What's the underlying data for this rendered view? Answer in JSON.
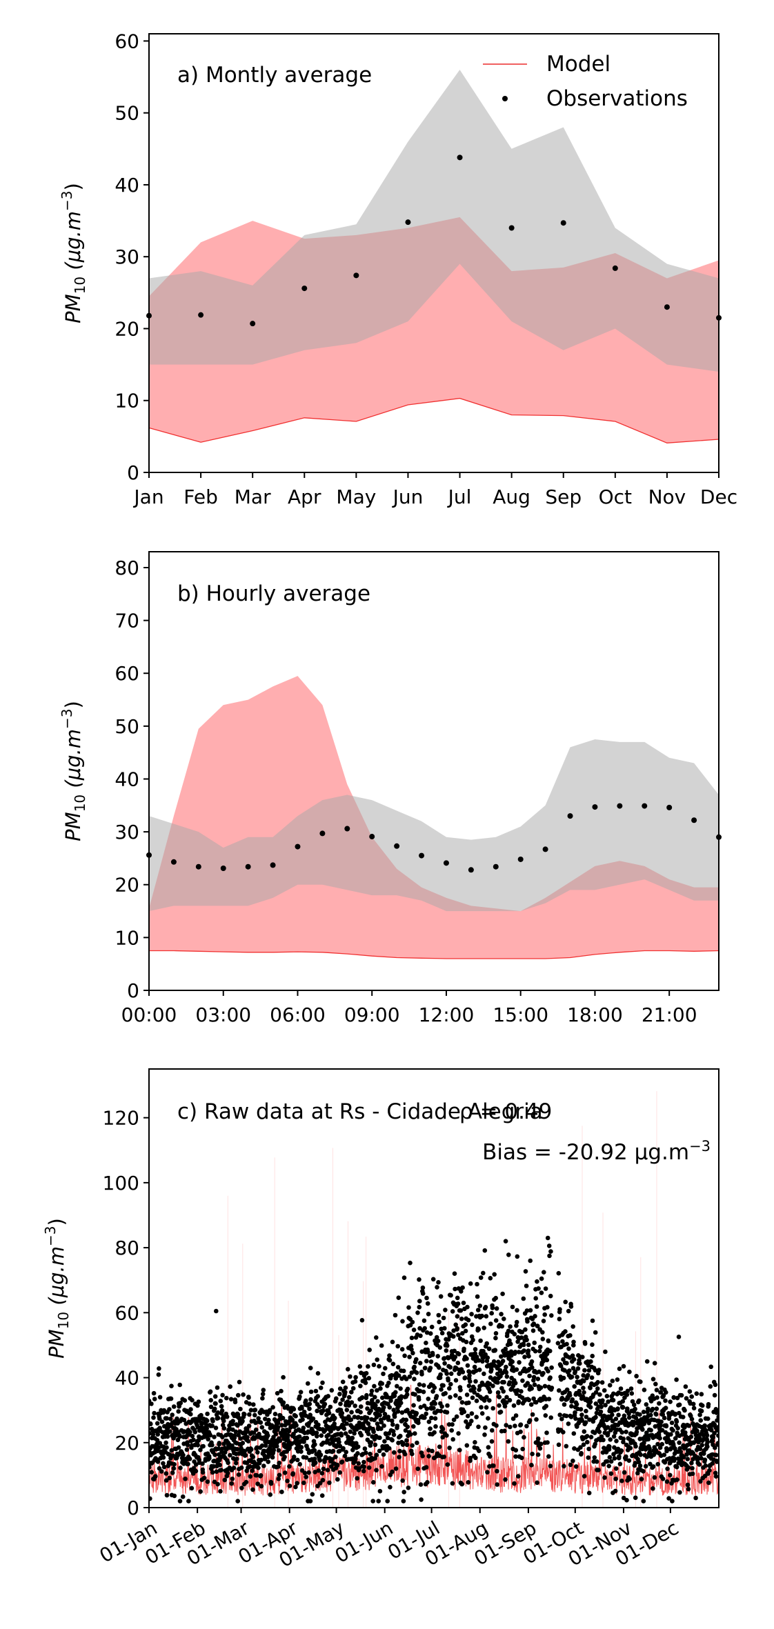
{
  "chart_data": [
    {
      "type": "line",
      "panel_label": "a) Montly average",
      "ylabel_main": "PM",
      "ylabel_sub": "10",
      "ylabel_unit": " (μg.m",
      "ylabel_sup": "−3",
      "ylabel_close": ")",
      "ylim": [
        0,
        61
      ],
      "yticks": [
        0,
        10,
        20,
        30,
        40,
        50,
        60
      ],
      "categories": [
        "Jan",
        "Feb",
        "Mar",
        "Apr",
        "May",
        "Jun",
        "Jul",
        "Aug",
        "Sep",
        "Oct",
        "Nov",
        "Dec"
      ],
      "legend": {
        "position": "top-right",
        "model": "Model",
        "observations": "Observations"
      },
      "model_band": {
        "lower": [
          6.2,
          4.2,
          5.8,
          7.6,
          7.1,
          9.4,
          10.3,
          8.0,
          7.9,
          7.1,
          4.1,
          4.6
        ],
        "upper": [
          24.5,
          32.0,
          35.0,
          32.5,
          33.0,
          34.0,
          35.5,
          28.0,
          28.5,
          30.5,
          27.0,
          29.5
        ]
      },
      "obs_band": {
        "lower": [
          15.0,
          15.0,
          15.0,
          17.0,
          18.0,
          21.0,
          29.0,
          21.0,
          17.0,
          20.0,
          15.0,
          14.0
        ],
        "upper": [
          27.0,
          28.0,
          26.0,
          33.0,
          34.5,
          46.0,
          56.0,
          45.0,
          48.0,
          34.0,
          29.0,
          27.0
        ]
      },
      "observations": [
        21.8,
        21.9,
        20.7,
        25.6,
        27.4,
        34.8,
        43.8,
        34.0,
        34.7,
        28.4,
        23.0,
        21.5
      ]
    },
    {
      "type": "line",
      "panel_label": "b) Hourly average",
      "ylabel_main": "PM",
      "ylabel_sub": "10",
      "ylabel_unit": " (μg.m",
      "ylabel_sup": "−3",
      "ylabel_close": ")",
      "ylim": [
        0,
        83
      ],
      "yticks": [
        0,
        10,
        20,
        30,
        40,
        50,
        60,
        70,
        80
      ],
      "x_hours": [
        0,
        1,
        2,
        3,
        4,
        5,
        6,
        7,
        8,
        9,
        10,
        11,
        12,
        13,
        14,
        15,
        16,
        17,
        18,
        19,
        20,
        21,
        22,
        23
      ],
      "xticks": [
        "00:00",
        "03:00",
        "06:00",
        "09:00",
        "12:00",
        "15:00",
        "18:00",
        "21:00"
      ],
      "xtick_hours": [
        0,
        3,
        6,
        9,
        12,
        15,
        18,
        21
      ],
      "model_band": {
        "lower": [
          7.5,
          7.5,
          7.4,
          7.3,
          7.2,
          7.2,
          7.3,
          7.2,
          6.9,
          6.5,
          6.2,
          6.1,
          6.0,
          6.0,
          6.0,
          6.0,
          6.0,
          6.2,
          6.8,
          7.2,
          7.5,
          7.5,
          7.4,
          7.5
        ],
        "upper": [
          15.5,
          33.0,
          49.5,
          54.0,
          55.0,
          57.5,
          59.5,
          54.0,
          39.0,
          29.0,
          23.0,
          19.5,
          17.5,
          16.0,
          15.5,
          15.0,
          17.5,
          20.5,
          23.5,
          24.5,
          23.5,
          21.0,
          19.5,
          19.5
        ]
      },
      "obs_band": {
        "lower": [
          15.0,
          16.0,
          16.0,
          16.0,
          16.0,
          17.5,
          20.0,
          20.0,
          19.0,
          18.0,
          18.0,
          17.0,
          15.0,
          15.0,
          15.0,
          15.0,
          16.5,
          19.0,
          19.0,
          20.0,
          21.0,
          19.0,
          17.0,
          17.0
        ],
        "upper": [
          33.0,
          31.5,
          30.0,
          27.0,
          29.0,
          29.0,
          33.0,
          36.0,
          37.0,
          36.0,
          34.0,
          32.0,
          29.0,
          28.5,
          29.0,
          31.0,
          35.0,
          46.0,
          47.5,
          47.0,
          47.0,
          44.0,
          43.0,
          37.0
        ]
      },
      "observations": [
        25.6,
        24.3,
        23.4,
        23.1,
        23.4,
        23.7,
        27.2,
        29.7,
        30.6,
        29.1,
        27.3,
        25.5,
        24.1,
        22.8,
        23.4,
        24.8,
        26.7,
        33.0,
        34.7,
        34.9,
        34.9,
        34.6,
        32.2,
        29.0
      ]
    },
    {
      "type": "scatter",
      "panel_label": "c) Raw data at Rs - Cidade Alegria",
      "rho_label": "ρ = 0.49",
      "bias_label": "Bias = -20.92 μg.m",
      "bias_sup": "−3",
      "ylabel_main": "PM",
      "ylabel_sub": "10",
      "ylabel_unit": " (μg.m",
      "ylabel_sup": "−3",
      "ylabel_close": ")",
      "ylim": [
        0,
        135
      ],
      "yticks": [
        0,
        20,
        40,
        60,
        80,
        100,
        120
      ],
      "xlim_days": [
        0,
        365
      ],
      "xticks": [
        "01-Jan",
        "01-Feb",
        "01-Mar",
        "01-Apr",
        "01-May",
        "01-Jun",
        "01-Jul",
        "01-Aug",
        "01-Sep",
        "01-Oct",
        "01-Nov",
        "01-Dec"
      ],
      "xtick_days": [
        0,
        31,
        59,
        90,
        120,
        151,
        181,
        212,
        243,
        273,
        304,
        334
      ],
      "obs_monthly_profile": {
        "day": [
          0,
          15,
          45,
          74,
          105,
          135,
          166,
          196,
          227,
          258,
          288,
          319,
          349,
          365
        ],
        "median": [
          20,
          21,
          21,
          20,
          23,
          25,
          32,
          45,
          40,
          45,
          27,
          23,
          22,
          20
        ],
        "spread": [
          9,
          10,
          10,
          9,
          10,
          12,
          18,
          20,
          20,
          20,
          13,
          11,
          10,
          10
        ]
      },
      "model_monthly_profile": {
        "day": [
          0,
          15,
          45,
          74,
          105,
          135,
          166,
          196,
          227,
          258,
          288,
          319,
          349,
          365
        ],
        "median": [
          9,
          9,
          8,
          8,
          10,
          11,
          13,
          12,
          10,
          10,
          9,
          8,
          8,
          9
        ]
      }
    }
  ]
}
